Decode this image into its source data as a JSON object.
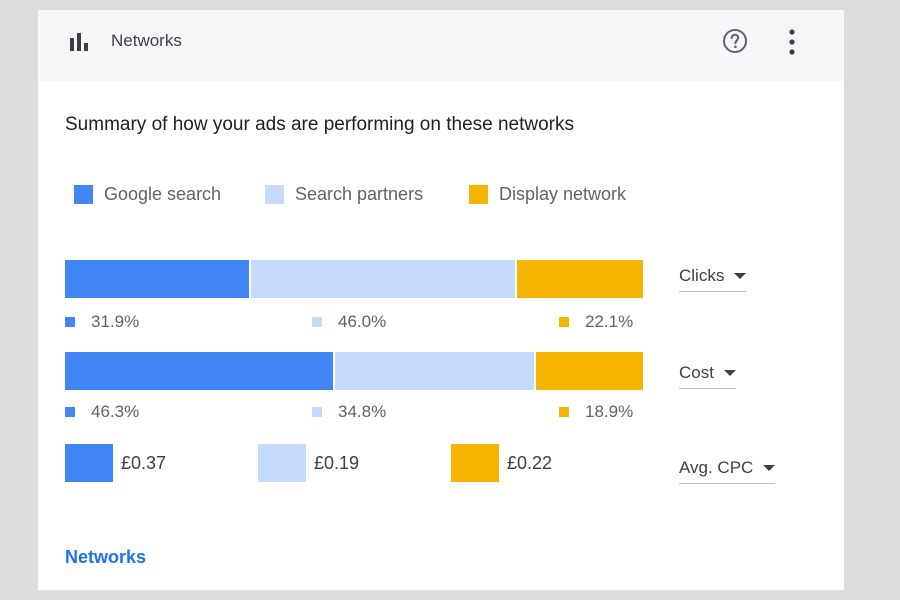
{
  "header": {
    "title": "Networks",
    "chart_icon": "bar-chart-icon",
    "help_icon": "help-icon",
    "more_icon": "more-vert-icon"
  },
  "summary": "Summary of how your ads are performing on these networks",
  "colors": {
    "google_search": "#4285f4",
    "search_partners": "#c6dafc",
    "display_network": "#f4b400"
  },
  "legend": [
    {
      "label": "Google search",
      "color": "#4285f4"
    },
    {
      "label": "Search partners",
      "color": "#c6dafc"
    },
    {
      "label": "Display network",
      "color": "#f4b400"
    }
  ],
  "chart_data": {
    "type": "bar",
    "categories": [
      "Clicks",
      "Cost"
    ],
    "series": [
      {
        "name": "Google search",
        "values": [
          31.9,
          46.3
        ]
      },
      {
        "name": "Search partners",
        "values": [
          46.0,
          34.8
        ]
      },
      {
        "name": "Display network",
        "values": [
          22.1,
          18.9
        ]
      }
    ],
    "percent_labels": {
      "clicks": [
        "31.9%",
        "46.0%",
        "22.1%"
      ],
      "cost": [
        "46.3%",
        "34.8%",
        "18.9%"
      ]
    },
    "avg_cpc": {
      "labels": [
        "£0.37",
        "£0.19",
        "£0.22"
      ],
      "values": [
        0.37,
        0.19,
        0.22
      ]
    }
  },
  "metrics": {
    "clicks_label": "Clicks",
    "cost_label": "Cost",
    "avg_cpc_label": "Avg. CPC"
  },
  "footer_link": "Networks"
}
